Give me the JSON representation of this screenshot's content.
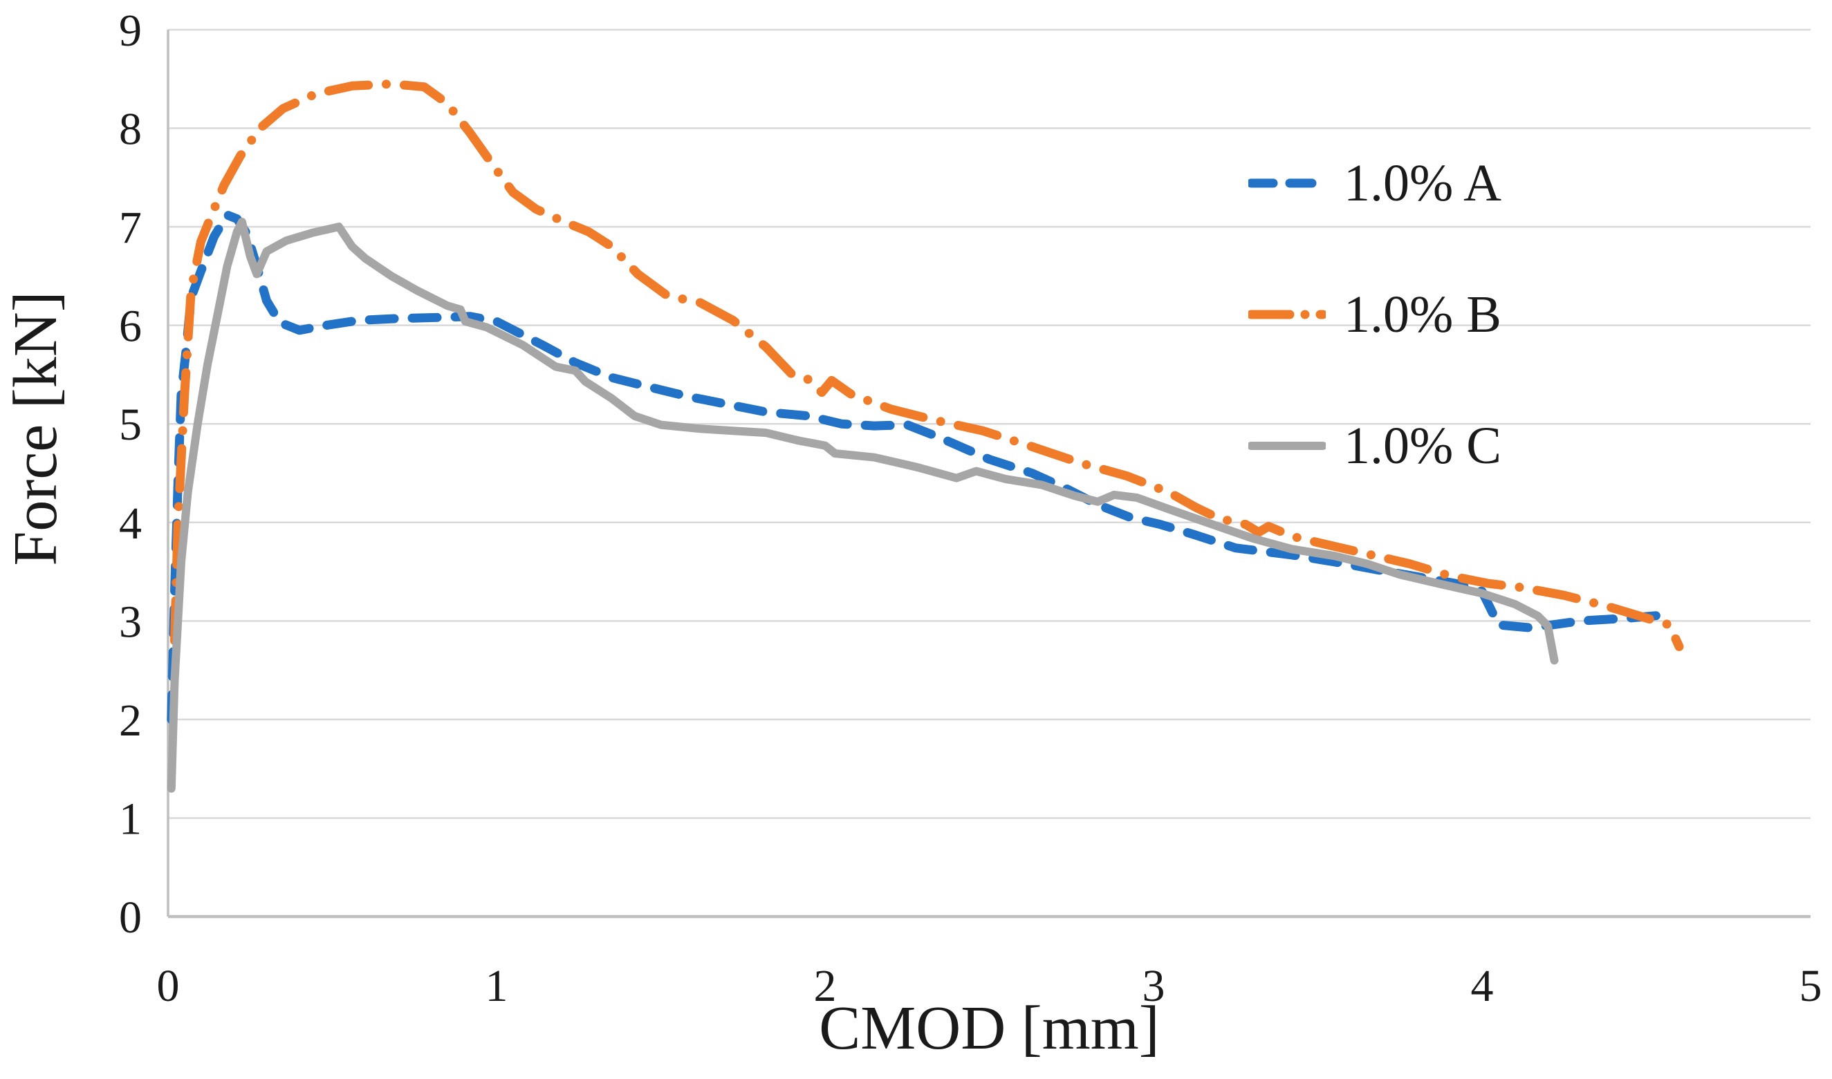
{
  "figure": {
    "background": "#FFFFFF",
    "grid_color": "#D9D9D9",
    "axis_line_color": "#BFBFBF",
    "text_color": "#1A1A1A"
  },
  "chart_data": {
    "type": "line",
    "title": "",
    "xlabel": "CMOD [mm]",
    "ylabel": "Force [kN]",
    "xlim": [
      0,
      5
    ],
    "ylim": [
      0,
      9
    ],
    "xticks": [
      0,
      1,
      2,
      3,
      4,
      5
    ],
    "yticks": [
      0,
      1,
      2,
      3,
      4,
      5,
      6,
      7,
      8,
      9
    ],
    "grid": "horizontal-only",
    "legend_position": "inside-top-right",
    "series": [
      {
        "name": "1.0% A",
        "color": "#2272C8",
        "line_style": "dashed",
        "dash": "36 26",
        "swatch_dash": "32 24",
        "width": 13,
        "points": [
          [
            0.01,
            2.0
          ],
          [
            0.02,
            3.3
          ],
          [
            0.03,
            4.4
          ],
          [
            0.04,
            5.3
          ],
          [
            0.055,
            5.75
          ],
          [
            0.07,
            6.28
          ],
          [
            0.1,
            6.55
          ],
          [
            0.14,
            6.9
          ],
          [
            0.18,
            7.12
          ],
          [
            0.21,
            7.08
          ],
          [
            0.24,
            6.93
          ],
          [
            0.27,
            6.6
          ],
          [
            0.3,
            6.25
          ],
          [
            0.34,
            6.03
          ],
          [
            0.4,
            5.95
          ],
          [
            0.48,
            6.0
          ],
          [
            0.58,
            6.05
          ],
          [
            0.7,
            6.07
          ],
          [
            0.82,
            6.08
          ],
          [
            0.92,
            6.09
          ],
          [
            1.0,
            6.04
          ],
          [
            1.07,
            5.92
          ],
          [
            1.14,
            5.8
          ],
          [
            1.24,
            5.62
          ],
          [
            1.35,
            5.47
          ],
          [
            1.47,
            5.37
          ],
          [
            1.58,
            5.28
          ],
          [
            1.7,
            5.2
          ],
          [
            1.82,
            5.12
          ],
          [
            1.95,
            5.08
          ],
          [
            2.05,
            5.0
          ],
          [
            2.15,
            4.98
          ],
          [
            2.25,
            4.99
          ],
          [
            2.35,
            4.86
          ],
          [
            2.5,
            4.64
          ],
          [
            2.63,
            4.5
          ],
          [
            2.73,
            4.35
          ],
          [
            2.83,
            4.18
          ],
          [
            2.93,
            4.05
          ],
          [
            3.02,
            3.98
          ],
          [
            3.12,
            3.88
          ],
          [
            3.25,
            3.74
          ],
          [
            3.42,
            3.67
          ],
          [
            3.55,
            3.6
          ],
          [
            3.68,
            3.52
          ],
          [
            3.8,
            3.45
          ],
          [
            3.92,
            3.38
          ],
          [
            4.0,
            3.3
          ],
          [
            4.05,
            2.96
          ],
          [
            4.15,
            2.93
          ],
          [
            4.3,
            3.0
          ],
          [
            4.45,
            3.03
          ],
          [
            4.55,
            3.06
          ]
        ]
      },
      {
        "name": "1.0% B",
        "color": "#F07B28",
        "line_style": "dash-dot",
        "dash": "58 26 0 26",
        "swatch_dash": "56 22 0 22",
        "width": 13,
        "points": [
          [
            0.02,
            2.8
          ],
          [
            0.03,
            4.0
          ],
          [
            0.05,
            5.3
          ],
          [
            0.07,
            6.35
          ],
          [
            0.1,
            6.85
          ],
          [
            0.13,
            7.1
          ],
          [
            0.17,
            7.42
          ],
          [
            0.22,
            7.72
          ],
          [
            0.28,
            8.0
          ],
          [
            0.35,
            8.2
          ],
          [
            0.45,
            8.35
          ],
          [
            0.56,
            8.43
          ],
          [
            0.68,
            8.45
          ],
          [
            0.78,
            8.42
          ],
          [
            0.85,
            8.25
          ],
          [
            0.92,
            7.95
          ],
          [
            0.99,
            7.62
          ],
          [
            1.05,
            7.35
          ],
          [
            1.12,
            7.18
          ],
          [
            1.2,
            7.06
          ],
          [
            1.28,
            6.95
          ],
          [
            1.35,
            6.8
          ],
          [
            1.43,
            6.52
          ],
          [
            1.52,
            6.3
          ],
          [
            1.62,
            6.23
          ],
          [
            1.72,
            6.05
          ],
          [
            1.82,
            5.78
          ],
          [
            1.9,
            5.5
          ],
          [
            1.95,
            5.45
          ],
          [
            1.99,
            5.32
          ],
          [
            2.02,
            5.44
          ],
          [
            2.08,
            5.3
          ],
          [
            2.2,
            5.15
          ],
          [
            2.33,
            5.04
          ],
          [
            2.48,
            4.93
          ],
          [
            2.62,
            4.78
          ],
          [
            2.78,
            4.6
          ],
          [
            2.92,
            4.47
          ],
          [
            3.05,
            4.3
          ],
          [
            3.13,
            4.15
          ],
          [
            3.2,
            4.04
          ],
          [
            3.28,
            3.98
          ],
          [
            3.32,
            3.9
          ],
          [
            3.35,
            3.96
          ],
          [
            3.42,
            3.86
          ],
          [
            3.52,
            3.78
          ],
          [
            3.65,
            3.68
          ],
          [
            3.78,
            3.58
          ],
          [
            3.9,
            3.46
          ],
          [
            4.02,
            3.38
          ],
          [
            4.12,
            3.34
          ],
          [
            4.25,
            3.26
          ],
          [
            4.38,
            3.15
          ],
          [
            4.5,
            3.03
          ],
          [
            4.57,
            2.96
          ],
          [
            4.6,
            2.74
          ]
        ]
      },
      {
        "name": "1.0% C",
        "color": "#A6A6A6",
        "line_style": "solid",
        "dash": "",
        "swatch_dash": "",
        "width": 12,
        "points": [
          [
            0.01,
            1.3
          ],
          [
            0.02,
            2.4
          ],
          [
            0.04,
            3.6
          ],
          [
            0.06,
            4.3
          ],
          [
            0.09,
            5.0
          ],
          [
            0.12,
            5.6
          ],
          [
            0.15,
            6.1
          ],
          [
            0.18,
            6.6
          ],
          [
            0.21,
            6.95
          ],
          [
            0.225,
            7.05
          ],
          [
            0.25,
            6.7
          ],
          [
            0.27,
            6.52
          ],
          [
            0.3,
            6.75
          ],
          [
            0.36,
            6.86
          ],
          [
            0.44,
            6.94
          ],
          [
            0.52,
            7.0
          ],
          [
            0.56,
            6.8
          ],
          [
            0.6,
            6.68
          ],
          [
            0.68,
            6.5
          ],
          [
            0.76,
            6.35
          ],
          [
            0.85,
            6.2
          ],
          [
            0.89,
            6.16
          ],
          [
            0.905,
            6.04
          ],
          [
            0.97,
            5.98
          ],
          [
            1.08,
            5.8
          ],
          [
            1.18,
            5.58
          ],
          [
            1.24,
            5.54
          ],
          [
            1.27,
            5.43
          ],
          [
            1.35,
            5.26
          ],
          [
            1.42,
            5.08
          ],
          [
            1.5,
            4.99
          ],
          [
            1.62,
            4.95
          ],
          [
            1.72,
            4.93
          ],
          [
            1.82,
            4.91
          ],
          [
            1.92,
            4.83
          ],
          [
            2.0,
            4.78
          ],
          [
            2.03,
            4.7
          ],
          [
            2.15,
            4.66
          ],
          [
            2.28,
            4.56
          ],
          [
            2.4,
            4.45
          ],
          [
            2.46,
            4.52
          ],
          [
            2.55,
            4.44
          ],
          [
            2.66,
            4.38
          ],
          [
            2.76,
            4.27
          ],
          [
            2.83,
            4.21
          ],
          [
            2.88,
            4.28
          ],
          [
            2.95,
            4.25
          ],
          [
            3.05,
            4.13
          ],
          [
            3.17,
            3.99
          ],
          [
            3.3,
            3.84
          ],
          [
            3.42,
            3.73
          ],
          [
            3.55,
            3.66
          ],
          [
            3.65,
            3.58
          ],
          [
            3.75,
            3.47
          ],
          [
            3.88,
            3.37
          ],
          [
            4.0,
            3.28
          ],
          [
            4.1,
            3.17
          ],
          [
            4.17,
            3.05
          ],
          [
            4.2,
            2.95
          ],
          [
            4.22,
            2.6
          ]
        ]
      }
    ]
  }
}
